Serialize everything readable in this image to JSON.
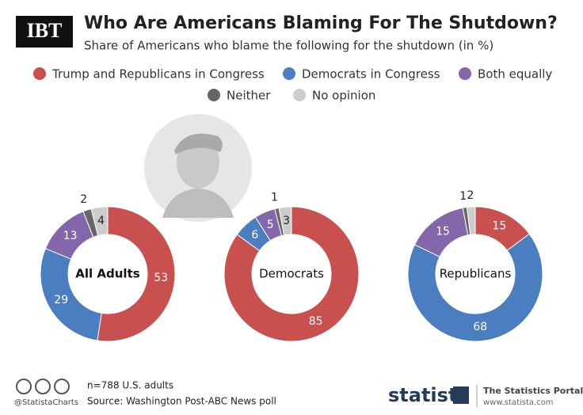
{
  "header": {
    "logo": "IBT",
    "title": "Who Are Americans Blaming For The Shutdown?",
    "subtitle": "Share of Americans who blame the following for the shutdown (in %)"
  },
  "chart_data": [
    {
      "type": "pie",
      "title": "All Adults",
      "categories": [
        "Trump and Republicans in Congress",
        "Democrats in Congress",
        "Both equally",
        "Neither",
        "No opinion"
      ],
      "values": [
        53,
        29,
        13,
        2,
        4
      ],
      "colors": [
        "#c8504e",
        "#4a7ec0",
        "#8466aa",
        "#666666",
        "#cccccc"
      ]
    },
    {
      "type": "pie",
      "title": "Democrats",
      "categories": [
        "Trump and Republicans in Congress",
        "Democrats in Congress",
        "Both equally",
        "Neither",
        "No opinion"
      ],
      "values": [
        85,
        6,
        5,
        1,
        3
      ],
      "colors": [
        "#c8504e",
        "#4a7ec0",
        "#8466aa",
        "#666666",
        "#cccccc"
      ]
    },
    {
      "type": "pie",
      "title": "Republicans",
      "categories": [
        "Trump and Republicans in Congress",
        "Democrats in Congress",
        "Both equally",
        "Neither",
        "No opinion"
      ],
      "values": [
        15,
        68,
        15,
        1,
        2
      ],
      "colors": [
        "#c8504e",
        "#4a7ec0",
        "#8466aa",
        "#666666",
        "#cccccc"
      ]
    }
  ],
  "footer": {
    "note": "n=788 U.S. adults",
    "source": "Source: Washington Post-ABC News poll",
    "handle": "@StatistaCharts",
    "brand": "statista",
    "portal": "The Statistics Portal",
    "url": "www.statista.com"
  }
}
